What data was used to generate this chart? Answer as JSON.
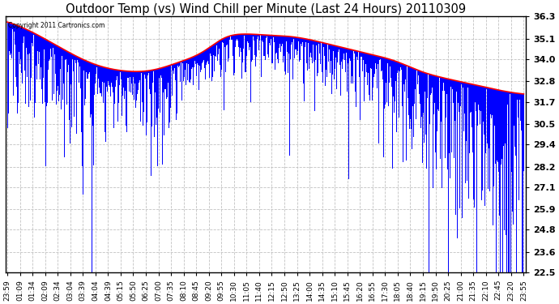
{
  "title": "Outdoor Temp (vs) Wind Chill per Minute (Last 24 Hours) 20110309",
  "copyright_text": "Copyright 2011 Cartronics.com",
  "ylim": [
    22.5,
    36.3
  ],
  "yticks": [
    36.3,
    35.1,
    34.0,
    32.8,
    31.7,
    30.5,
    29.4,
    28.2,
    27.1,
    25.9,
    24.8,
    23.6,
    22.5
  ],
  "xtick_labels": [
    "23:59",
    "01:09",
    "01:34",
    "02:09",
    "02:34",
    "03:04",
    "03:39",
    "04:04",
    "04:39",
    "05:15",
    "05:50",
    "06:25",
    "07:00",
    "07:35",
    "08:10",
    "08:45",
    "09:20",
    "09:55",
    "10:30",
    "11:05",
    "11:40",
    "12:15",
    "12:50",
    "13:25",
    "14:00",
    "14:35",
    "15:10",
    "15:45",
    "16:20",
    "16:55",
    "17:30",
    "18:05",
    "18:40",
    "19:15",
    "19:50",
    "20:25",
    "21:00",
    "21:35",
    "22:10",
    "22:45",
    "23:20",
    "23:55"
  ],
  "background_color": "#ffffff",
  "plot_bg_color": "#ffffff",
  "grid_color": "#bbbbbb",
  "bar_color": "#0000ff",
  "line_color": "#ff0000",
  "title_fontsize": 10.5,
  "tick_fontsize": 6.5,
  "ylabel_right_fontsize": 8,
  "n_points": 1440,
  "red_line_keypoints_x": [
    0.0,
    0.04,
    0.1,
    0.17,
    0.22,
    0.28,
    0.33,
    0.38,
    0.42,
    0.46,
    0.5,
    0.54,
    0.58,
    0.62,
    0.66,
    0.7,
    0.75,
    0.8,
    0.85,
    0.9,
    0.95,
    1.0
  ],
  "red_line_keypoints_y": [
    36.0,
    35.5,
    34.5,
    33.5,
    33.2,
    33.3,
    33.8,
    34.5,
    35.3,
    35.5,
    35.4,
    35.3,
    35.1,
    34.8,
    34.5,
    34.2,
    33.8,
    33.2,
    32.8,
    32.5,
    32.2,
    32.0
  ]
}
